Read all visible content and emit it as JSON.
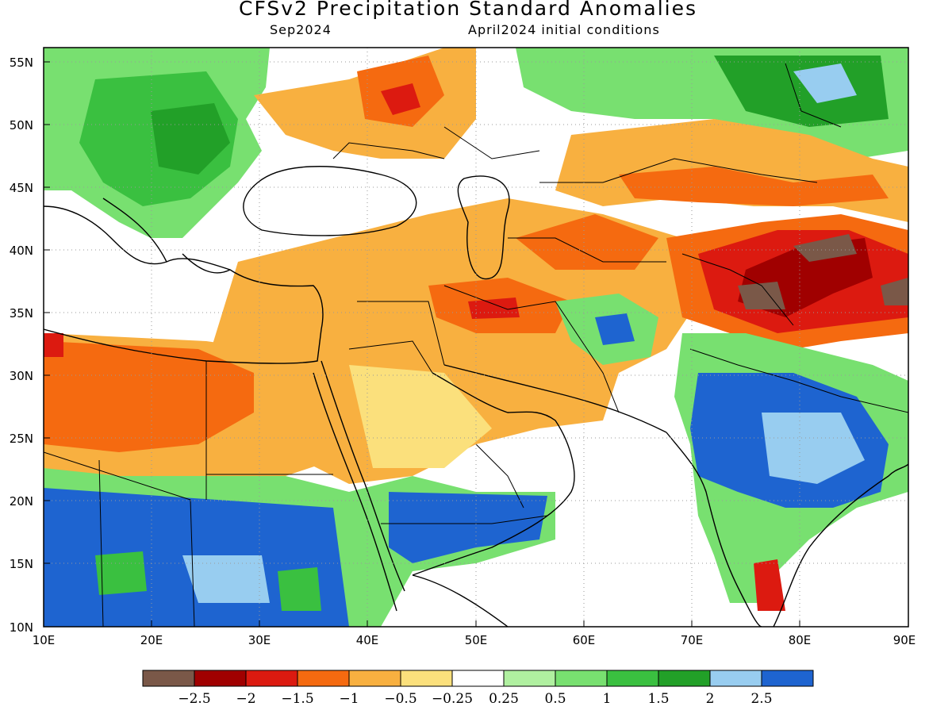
{
  "title": "CFSv2 Precipitation Standard Anomalies",
  "subtitle_left": "Sep2024",
  "subtitle_right": "April2024 initial conditions",
  "axes": {
    "lon_ticks": [
      "10E",
      "20E",
      "30E",
      "40E",
      "50E",
      "60E",
      "70E",
      "80E",
      "90E"
    ],
    "lat_ticks": [
      "10N",
      "15N",
      "20N",
      "25N",
      "30N",
      "35N",
      "40N",
      "45N",
      "50N",
      "55N"
    ]
  },
  "colorbar": {
    "colors": [
      "#7a5848",
      "#a00000",
      "#dc1a10",
      "#f56a10",
      "#f8b040",
      "#fbe07c",
      "#ffffff",
      "#b0f0a0",
      "#78e070",
      "#3ac040",
      "#22a028",
      "#98cdf0",
      "#1e64d0"
    ],
    "labels": [
      "−2.5",
      "−2",
      "−1.5",
      "−1",
      "−0.5",
      "−0.25",
      "0.25",
      "0.5",
      "1",
      "1.5",
      "2",
      "2.5"
    ]
  }
}
